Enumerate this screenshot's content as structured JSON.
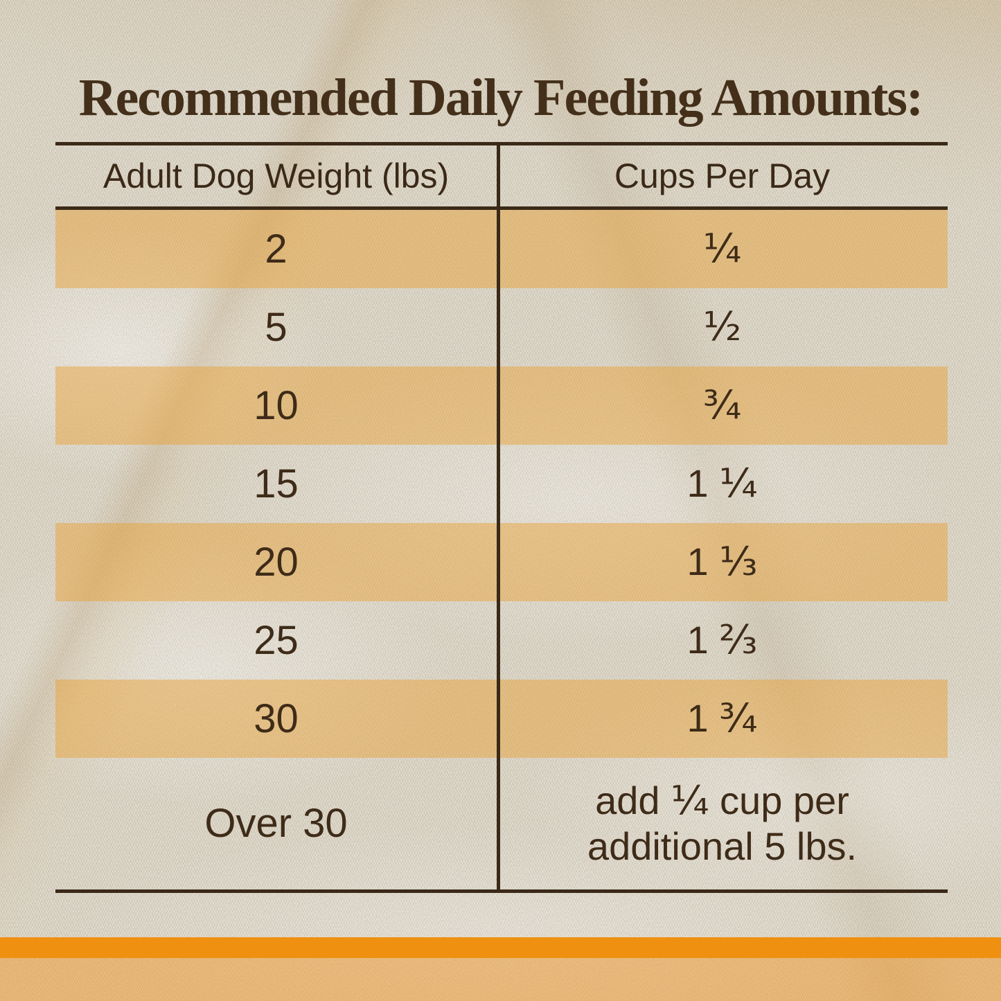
{
  "title": "Recommended Daily Feeding Amounts:",
  "table": {
    "headers": [
      "Adult Dog Weight (lbs)",
      "Cups Per Day"
    ],
    "rows": [
      {
        "weight": "2",
        "cups": "¼",
        "highlight": true
      },
      {
        "weight": "5",
        "cups": "½",
        "highlight": false
      },
      {
        "weight": "10",
        "cups": "¾",
        "highlight": true
      },
      {
        "weight": "15",
        "cups": "1 ¼",
        "highlight": false
      },
      {
        "weight": "20",
        "cups": "1 ⅓",
        "highlight": true
      },
      {
        "weight": "25",
        "cups": "1 ⅔",
        "highlight": false
      },
      {
        "weight": "30",
        "cups": "1 ¾",
        "highlight": true
      },
      {
        "weight": "Over 30",
        "cups": "add ¼ cup per\nadditional 5 lbs.",
        "highlight": false
      }
    ]
  },
  "colors": {
    "fabric": "#e8e3d6",
    "highlight_band": "#e8c389",
    "text_brown": "#3b2918",
    "accent_orange_bar": "#ef9011",
    "bottom_tint": "#eebb77"
  }
}
